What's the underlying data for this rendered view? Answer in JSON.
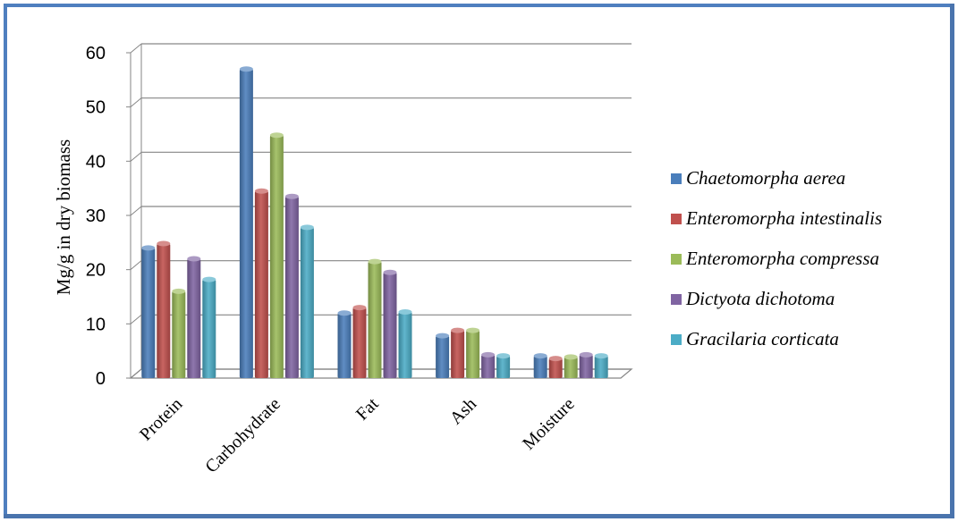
{
  "chart_data": {
    "type": "bar",
    "title": "",
    "xlabel": "",
    "ylabel": "Mg/g in dry biomass",
    "ylim": [
      0,
      60
    ],
    "yticks": [
      0,
      10,
      20,
      30,
      40,
      50,
      60
    ],
    "categories": [
      "Protein",
      "Carbohydrate",
      "Fat",
      "Ash",
      "Moisture"
    ],
    "grid": true,
    "legend_position": "right",
    "series": [
      {
        "name": "Chaetomorpha aerea",
        "color": "#4a7ebb",
        "values": [
          24,
          57,
          12,
          7.8,
          4.1
        ]
      },
      {
        "name": "Enteromorpha intestinalis",
        "color": "#c0504d",
        "values": [
          24.8,
          34.5,
          13,
          8.8,
          3.6
        ]
      },
      {
        "name": "Enteromorpha compressa",
        "color": "#9bbb59",
        "values": [
          16,
          44.8,
          21.5,
          8.8,
          3.9
        ]
      },
      {
        "name": "Dictyota dichotoma",
        "color": "#8064a2",
        "values": [
          22,
          33.5,
          19.5,
          4.3,
          4.3
        ]
      },
      {
        "name": "Gracilaria corticata",
        "color": "#4bacc6",
        "values": [
          18.2,
          27.8,
          12.2,
          4.1,
          4.1
        ]
      }
    ]
  }
}
